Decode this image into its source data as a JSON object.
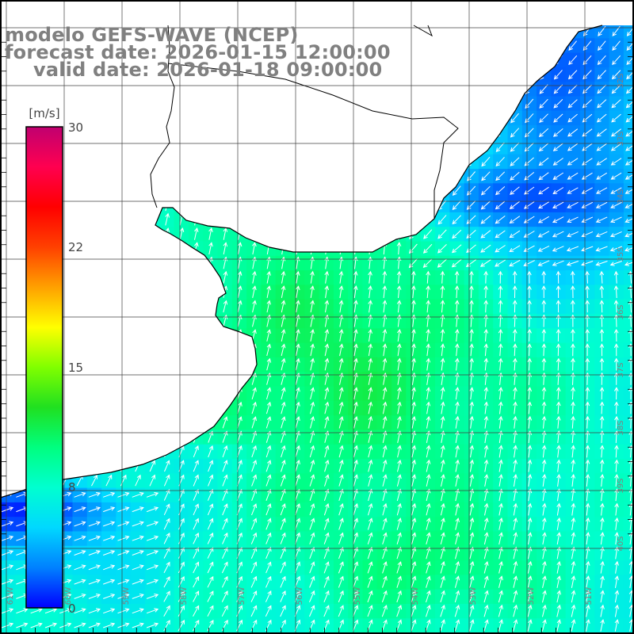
{
  "titles": {
    "model": "modelo GEFS-WAVE (NCEP)",
    "forecast": "forecast date: 2026-01-15 12:00:00",
    "valid": "valid date: 2026-01-18 09:00:00"
  },
  "colorbar": {
    "unit": "[m/s]",
    "ticks": [
      "30",
      "22",
      "15",
      "8",
      "0"
    ],
    "colors": [
      "#0000ff",
      "#0080ff",
      "#00d8ff",
      "#00ffd0",
      "#00ff80",
      "#20e020",
      "#80ff00",
      "#ffff00",
      "#ffa000",
      "#ff4000",
      "#ff0000",
      "#ff0050",
      "#c00070"
    ]
  },
  "map": {
    "latitude_labels": [
      "32S",
      "33S",
      "34S",
      "35S",
      "36S",
      "37S",
      "38S",
      "39S",
      "40S"
    ],
    "longitude_labels": [
      "61W",
      "60W",
      "59W",
      "58W",
      "57W",
      "56W",
      "55W",
      "54W",
      "53W",
      "52W",
      "51W"
    ]
  },
  "colors": {
    "text": "#808080",
    "grid": "#404040",
    "coast": "#000000",
    "land": "#ffffff"
  }
}
